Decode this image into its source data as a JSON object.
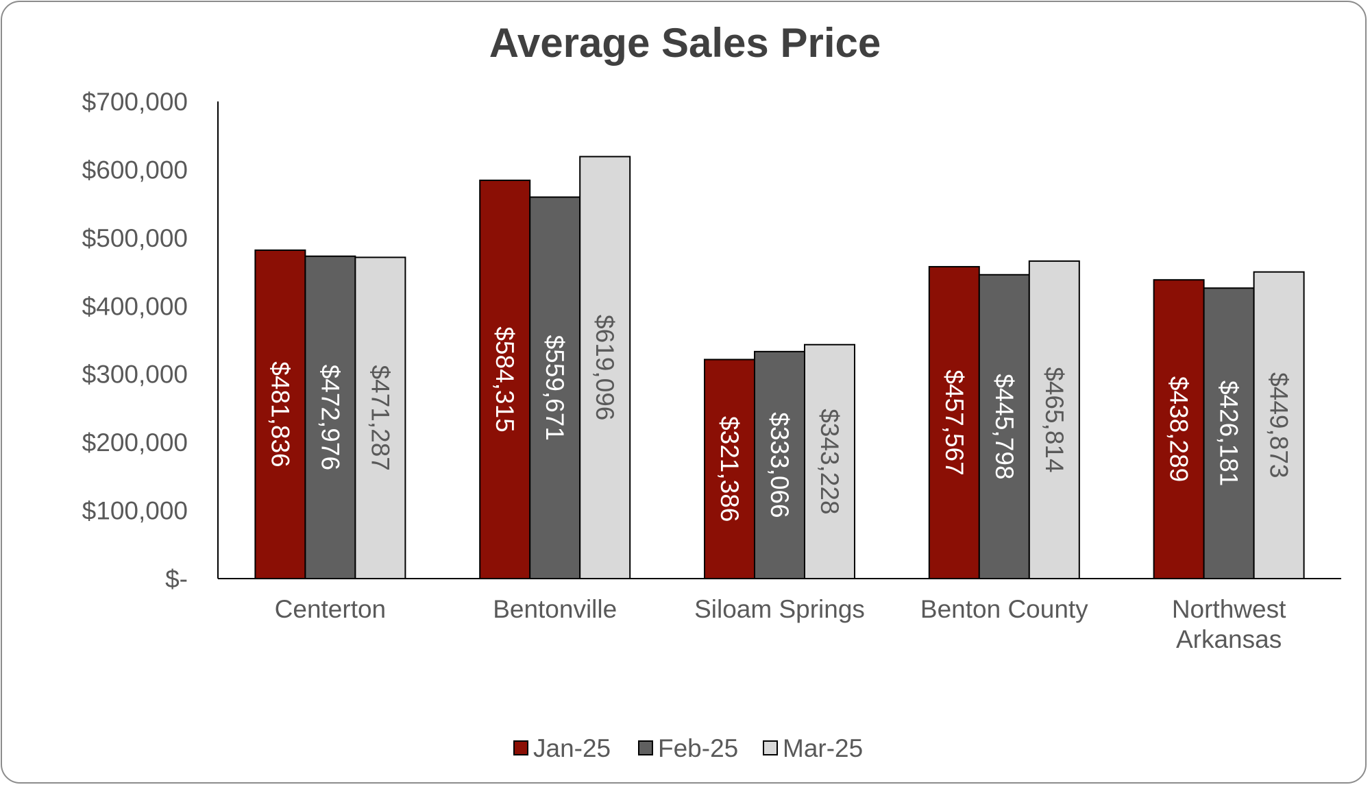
{
  "chart_data": {
    "type": "bar",
    "title": "Average Sales Price",
    "xlabel": "",
    "ylabel": "",
    "ylim": [
      0,
      700000
    ],
    "yticks": [
      {
        "value": 0,
        "label": "$-"
      },
      {
        "value": 100000,
        "label": "$100,000"
      },
      {
        "value": 200000,
        "label": "$200,000"
      },
      {
        "value": 300000,
        "label": "$300,000"
      },
      {
        "value": 400000,
        "label": "$400,000"
      },
      {
        "value": 500000,
        "label": "$500,000"
      },
      {
        "value": 600000,
        "label": "$600,000"
      },
      {
        "value": 700000,
        "label": "$700,000"
      }
    ],
    "categories": [
      [
        "Centerton"
      ],
      [
        "Bentonville"
      ],
      [
        "Siloam Springs"
      ],
      [
        "Benton County"
      ],
      [
        "Northwest",
        "Arkansas"
      ]
    ],
    "series": [
      {
        "name": "Jan-25",
        "color": "#8b0f05",
        "label_color": "#ffffff",
        "values": [
          481836,
          584315,
          321386,
          457567,
          438289
        ],
        "labels": [
          "$481,836",
          "$584,315",
          "$321,386",
          "$457,567",
          "$438,289"
        ]
      },
      {
        "name": "Feb-25",
        "color": "#606060",
        "label_color": "#ffffff",
        "values": [
          472976,
          559671,
          333066,
          445798,
          426181
        ],
        "labels": [
          "$472,976",
          "$559,671",
          "$333,066",
          "$445,798",
          "$426,181"
        ]
      },
      {
        "name": "Mar-25",
        "color": "#d9d9d9",
        "label_color": "#595959",
        "values": [
          471287,
          619096,
          343228,
          465814,
          449873
        ],
        "labels": [
          "$471,287",
          "$619,096",
          "$343,228",
          "$465,814",
          "$449,873"
        ]
      }
    ],
    "grid": false,
    "legend_position": "bottom"
  }
}
